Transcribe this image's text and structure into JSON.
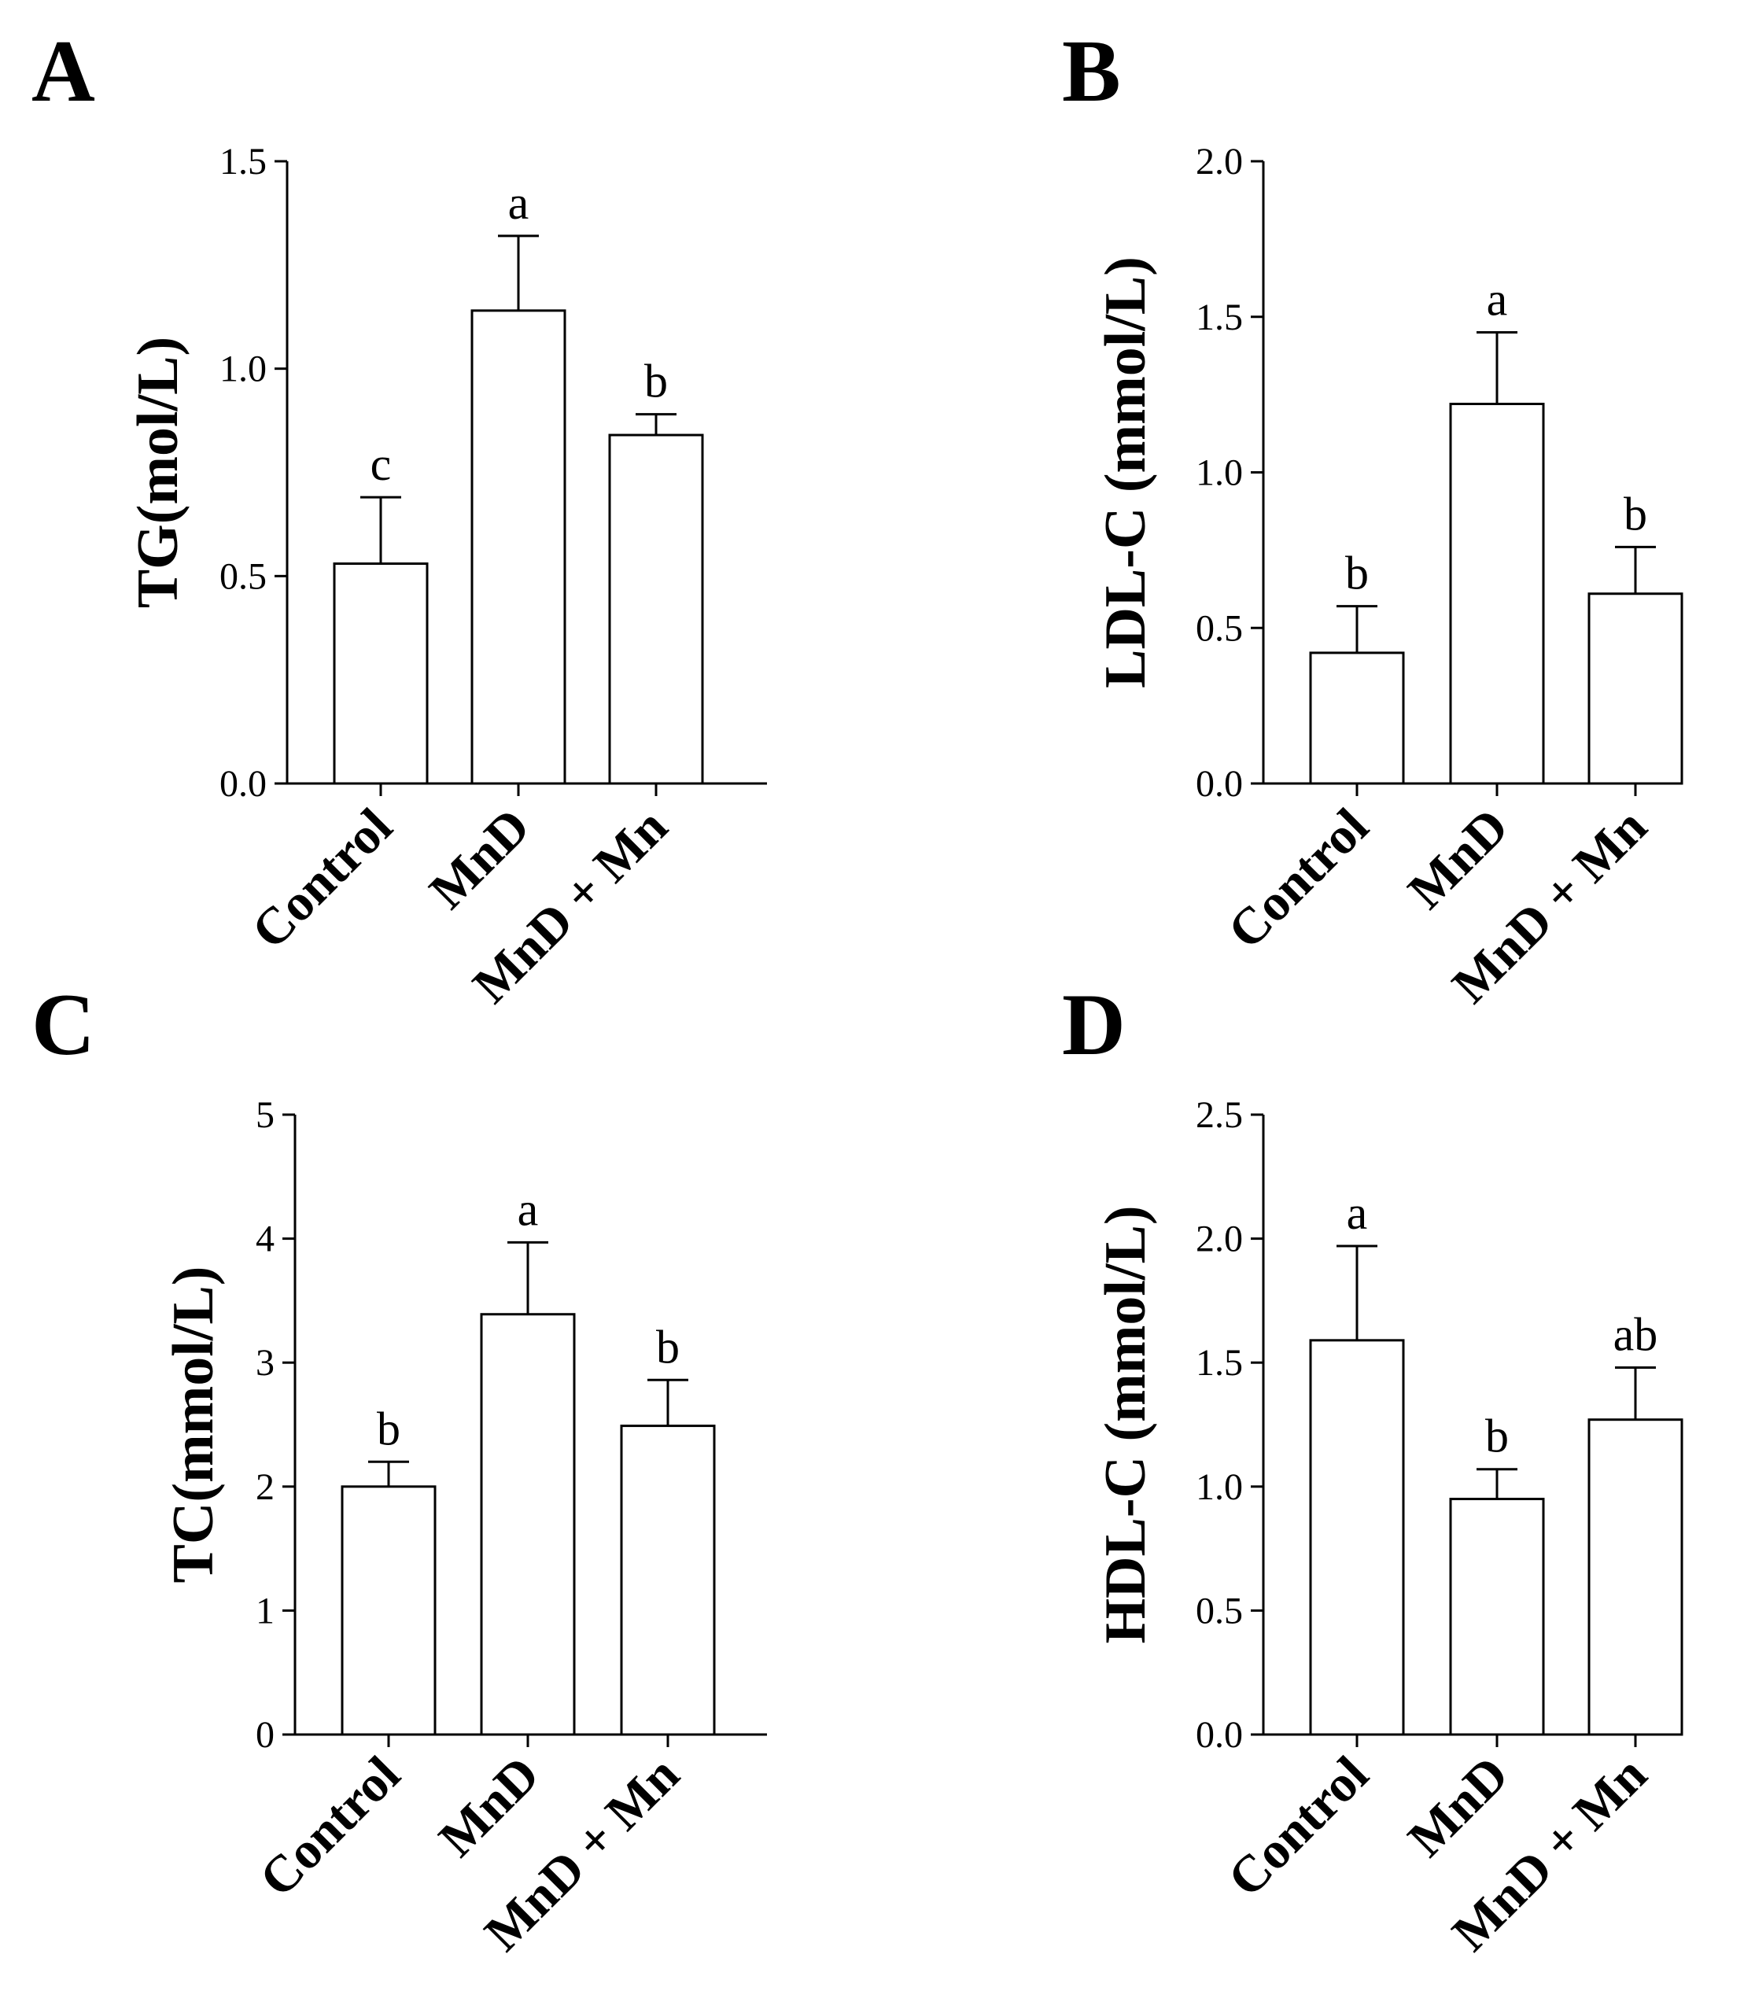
{
  "chart_data": [
    {
      "type": "bar",
      "panel": "A",
      "ylabel": "TG(mol/L)",
      "categories": [
        "Control",
        "MnD",
        "MnD + Mn"
      ],
      "values": [
        0.53,
        1.14,
        0.84
      ],
      "errors": [
        0.16,
        0.18,
        0.05
      ],
      "significance": [
        "c",
        "a",
        "b"
      ],
      "ylim": [
        0,
        1.5
      ],
      "yticks": [
        "0.0",
        "0.5",
        "1.0",
        "1.5"
      ]
    },
    {
      "type": "bar",
      "panel": "B",
      "ylabel": "LDL-C (mmol/L)",
      "categories": [
        "Control",
        "MnD",
        "MnD + Mn"
      ],
      "values": [
        0.42,
        1.22,
        0.61
      ],
      "errors": [
        0.15,
        0.23,
        0.15
      ],
      "significance": [
        "b",
        "a",
        "b"
      ],
      "ylim": [
        0,
        2.0
      ],
      "yticks": [
        "0.0",
        "0.5",
        "1.0",
        "1.5",
        "2.0"
      ]
    },
    {
      "type": "bar",
      "panel": "C",
      "ylabel": "TC(mmol/L)",
      "categories": [
        "Control",
        "MnD",
        "MnD + Mn"
      ],
      "values": [
        2.0,
        3.39,
        2.49
      ],
      "errors": [
        0.2,
        0.58,
        0.37
      ],
      "significance": [
        "b",
        "a",
        "b"
      ],
      "ylim": [
        0,
        5
      ],
      "yticks": [
        "0",
        "1",
        "2",
        "3",
        "4",
        "5"
      ]
    },
    {
      "type": "bar",
      "panel": "D",
      "ylabel": "HDL-C (mmol/L)",
      "categories": [
        "Control",
        "MnD",
        "MnD + Mn"
      ],
      "values": [
        1.59,
        0.95,
        1.27
      ],
      "errors": [
        0.38,
        0.12,
        0.21
      ],
      "significance": [
        "a",
        "b",
        "ab"
      ],
      "ylim": [
        0,
        2.5
      ],
      "yticks": [
        "0.0",
        "0.5",
        "1.0",
        "1.5",
        "2.0",
        "2.5"
      ]
    }
  ]
}
